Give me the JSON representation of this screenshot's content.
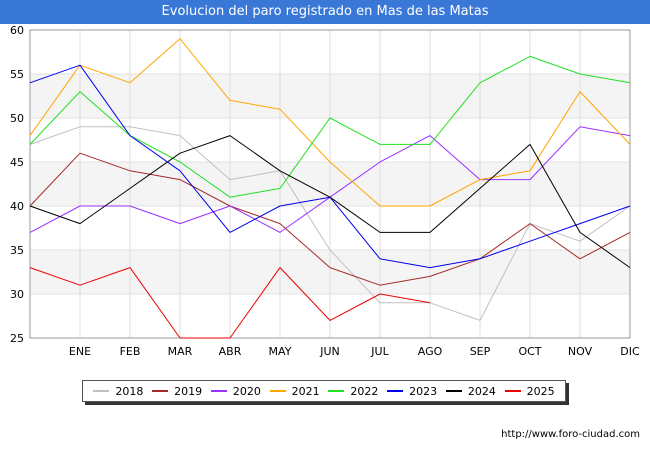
{
  "chart_data": {
    "type": "line",
    "title": "Evolucion del paro registrado en Mas de las Matas",
    "categories": [
      "",
      "ENE",
      "FEB",
      "MAR",
      "ABR",
      "MAY",
      "JUN",
      "JUL",
      "AGO",
      "SEP",
      "OCT",
      "NOV",
      "DIC"
    ],
    "ylim": [
      25,
      60
    ],
    "yticks": [
      25,
      30,
      35,
      40,
      45,
      50,
      55,
      60
    ],
    "grid": true,
    "legend_position": "bottom",
    "series": [
      {
        "name": "2018",
        "color": "#c0c0c0",
        "values": [
          47,
          49,
          49,
          48,
          43,
          44,
          35,
          29,
          29,
          27,
          38,
          36,
          40
        ]
      },
      {
        "name": "2019",
        "color": "#a52a2a",
        "values": [
          40,
          46,
          44,
          43,
          40,
          38,
          33,
          31,
          32,
          34,
          38,
          34,
          37
        ]
      },
      {
        "name": "2020",
        "color": "#9b30ff",
        "values": [
          37,
          40,
          40,
          38,
          40,
          37,
          41,
          45,
          48,
          43,
          43,
          49,
          48
        ]
      },
      {
        "name": "2021",
        "color": "#ffa500",
        "values": [
          48,
          56,
          54,
          59,
          52,
          51,
          45,
          40,
          40,
          43,
          44,
          53,
          47
        ]
      },
      {
        "name": "2022",
        "color": "#22e022",
        "values": [
          47,
          53,
          48,
          45,
          41,
          42,
          50,
          47,
          47,
          54,
          57,
          55,
          54
        ]
      },
      {
        "name": "2023",
        "color": "#0000ee",
        "values": [
          54,
          56,
          48,
          44,
          37,
          40,
          41,
          34,
          33,
          34,
          36,
          38,
          40
        ]
      },
      {
        "name": "2024",
        "color": "#000000",
        "values": [
          40,
          38,
          42,
          46,
          48,
          44,
          41,
          37,
          37,
          42,
          47,
          37,
          33
        ]
      },
      {
        "name": "2025",
        "color": "#ee0000",
        "values": [
          33,
          31,
          33,
          25,
          25,
          33,
          27,
          30,
          29,
          null,
          null,
          null,
          null
        ]
      }
    ]
  },
  "footer": {
    "source": "http://www.foro-ciudad.com"
  }
}
